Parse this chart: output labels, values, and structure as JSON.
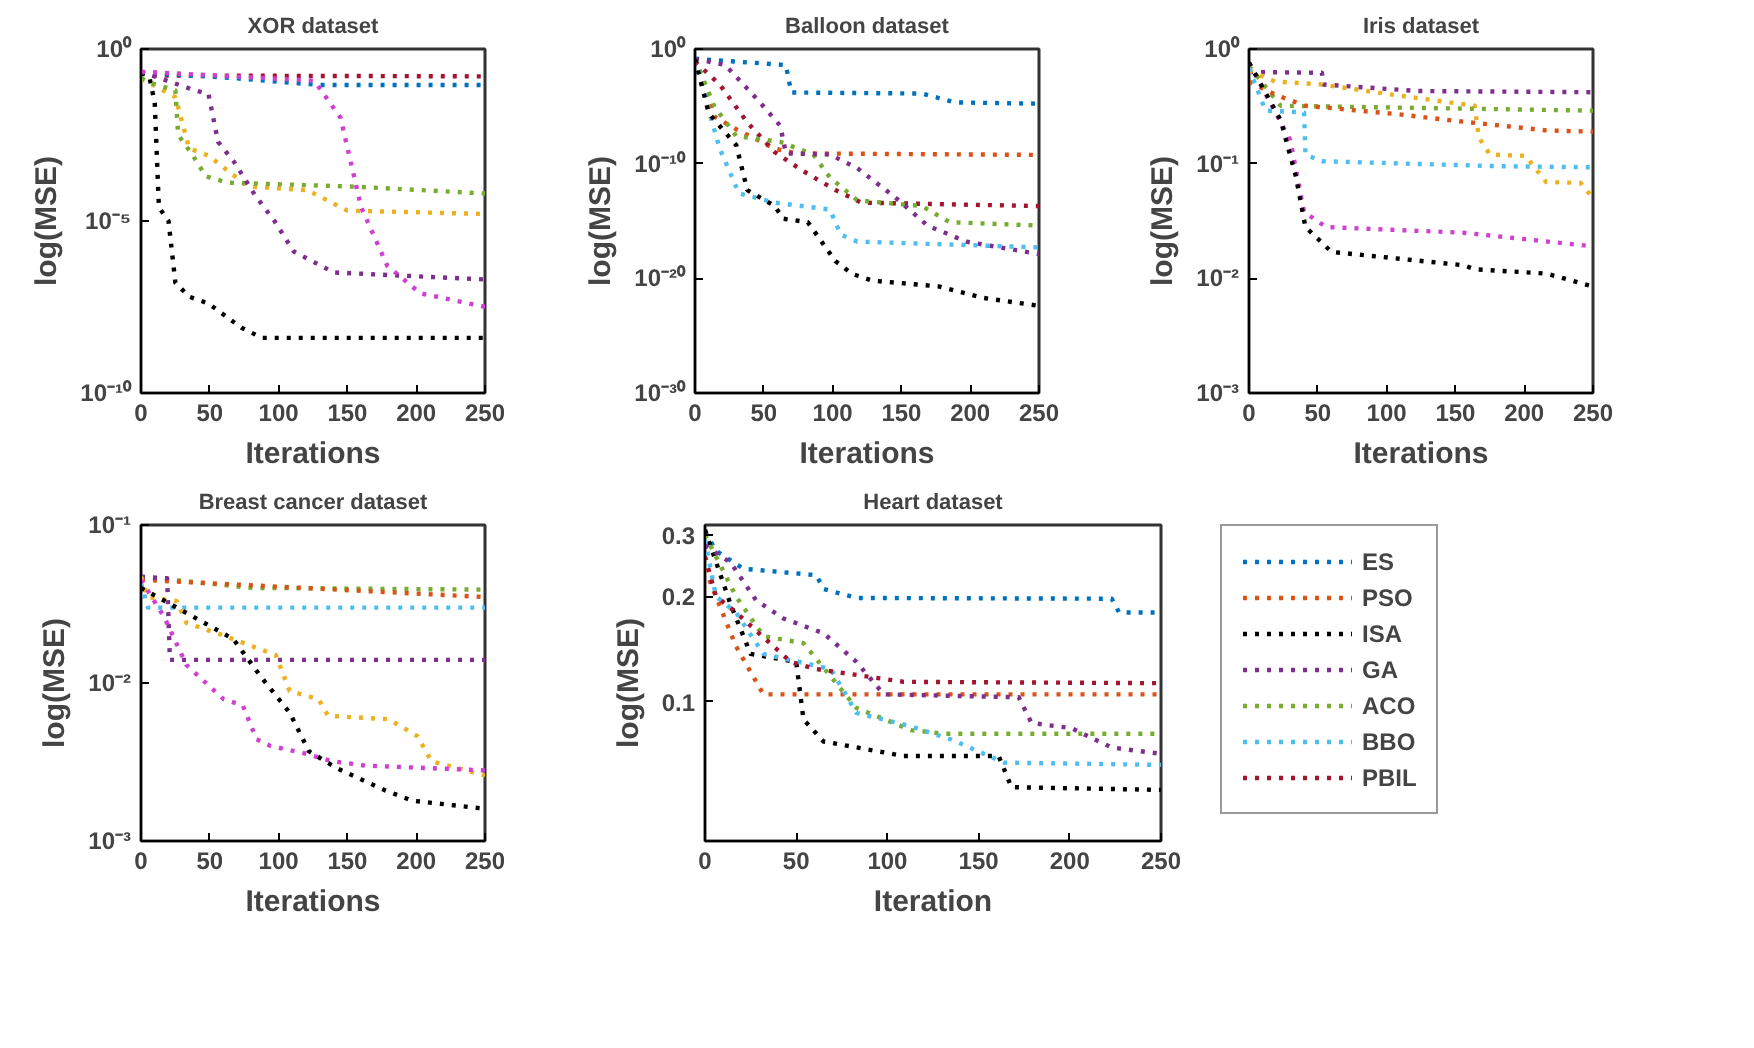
{
  "chart_data": [
    {
      "type": "line",
      "title": "XOR dataset",
      "xlabel": "Iterations",
      "ylabel": "log(MSE)",
      "log": "y",
      "line_style": "dotted",
      "xlim": [
        0,
        250
      ],
      "xticks": [
        0,
        50,
        100,
        150,
        200,
        250
      ],
      "ylim": [
        1e-10,
        1
      ],
      "yticks": [
        {
          "value": 1,
          "label": "10⁰"
        },
        {
          "value": 1e-05,
          "label": "10⁻⁵"
        },
        {
          "value": 1e-10,
          "label": "10⁻¹⁰"
        }
      ],
      "series": [
        {
          "color": "#a2142f",
          "x": [
            0,
            10,
            250
          ],
          "values": [
            0.2,
            0.17,
            0.16
          ]
        },
        {
          "color": "#0072bd",
          "x": [
            0,
            60,
            130,
            250
          ],
          "values": [
            0.2,
            0.15,
            0.09,
            0.09
          ]
        },
        {
          "color": "#000000",
          "x": [
            0,
            6,
            10,
            13,
            20,
            25,
            35,
            49,
            73,
            88,
            250
          ],
          "values": [
            0.2,
            0.16,
            0.027,
            2.5e-05,
            1e-05,
            1.6e-07,
            6.3e-08,
            4e-08,
            7.9e-09,
            4e-09,
            4e-09
          ]
        },
        {
          "color": "#edb120",
          "x": [
            0,
            25,
            35,
            49,
            78,
            121,
            150,
            250
          ],
          "values": [
            0.14,
            0.04,
            0.0013,
            0.00079,
            0.0001,
            7.9e-05,
            2e-05,
            1.6e-05
          ]
        },
        {
          "color": "#77ac30",
          "x": [
            0,
            8,
            25,
            27,
            37,
            47,
            63,
            155,
            250
          ],
          "values": [
            0.14,
            0.1,
            0.063,
            0.0032,
            0.00089,
            0.0002,
            0.00013,
            0.0001,
            6.3e-05
          ]
        },
        {
          "color": "#7e2f8e",
          "x": [
            0,
            39,
            49,
            56,
            68,
            83,
            97,
            111,
            140,
            179,
            250
          ],
          "values": [
            0.22,
            0.063,
            0.05,
            0.002,
            0.0005,
            5.5e-05,
            1e-05,
            1.3e-06,
            3.2e-07,
            2.7e-07,
            2e-07
          ]
        },
        {
          "color": "#d040d0",
          "x": [
            0,
            126,
            145,
            160,
            179,
            203,
            250
          ],
          "values": [
            0.22,
            0.12,
            0.01,
            2.5e-05,
            5e-07,
            7.9e-08,
            3.2e-08
          ]
        }
      ]
    },
    {
      "type": "line",
      "title": "Balloon dataset",
      "xlabel": "Iterations",
      "ylabel": "log(MSE)",
      "log": "y",
      "line_style": "dotted",
      "xlim": [
        0,
        250
      ],
      "xticks": [
        0,
        50,
        100,
        150,
        200,
        250
      ],
      "ylim": [
        1e-30,
        1
      ],
      "yticks": [
        {
          "value": 1,
          "label": "10⁰"
        },
        {
          "value": 1e-10,
          "label": "10⁻¹⁰"
        },
        {
          "value": 1e-20,
          "label": "10⁻²⁰"
        },
        {
          "value": 1e-30,
          "label": "10⁻³⁰"
        }
      ],
      "series": [
        {
          "color": "#0072bd",
          "x": [
            0,
            66,
            70,
            165,
            189,
            250
          ],
          "values": [
            0.14,
            0.04,
            0.00016,
            0.00013,
            2.2e-05,
            1.7e-05
          ]
        },
        {
          "color": "#d95319",
          "x": [
            0,
            14,
            30,
            58,
            74,
            250
          ],
          "values": [
            0.14,
            1.3e-06,
            1e-07,
            2e-09,
            7.9e-10,
            5.8e-10
          ]
        },
        {
          "color": "#a2142f",
          "x": [
            0,
            18,
            38,
            58,
            78,
            102,
            121,
            250
          ],
          "values": [
            0.08,
            0.00079,
            4e-07,
            1e-09,
            2.5e-11,
            5e-13,
            4e-14,
            2e-14
          ]
        },
        {
          "color": "#77ac30",
          "x": [
            0,
            14,
            30,
            62,
            86,
            98,
            118,
            165,
            185,
            250
          ],
          "values": [
            0.14,
            1e-05,
            2.5e-08,
            7.9e-09,
            6.3e-10,
            6.3e-12,
            6.3e-14,
            2e-14,
            7.9e-16,
            4e-16
          ]
        },
        {
          "color": "#7e2f8e",
          "x": [
            0,
            22,
            46,
            62,
            66,
            98,
            118,
            145,
            169,
            197,
            250
          ],
          "values": [
            0.14,
            0.04,
            3.2e-05,
            2e-07,
            7.9e-10,
            6.3e-10,
            4e-11,
            1.3e-13,
            4e-16,
            1.6e-17,
            1.3e-18
          ]
        },
        {
          "color": "#4dbeee",
          "x": [
            0,
            12,
            18,
            32,
            58,
            98,
            106,
            118,
            250
          ],
          "values": [
            0.14,
            6.3e-07,
            2e-09,
            2.5e-13,
            4e-14,
            1e-14,
            6.3e-17,
            1.6e-17,
            5e-18
          ]
        },
        {
          "color": "#000000",
          "x": [
            0,
            10,
            30,
            38,
            58,
            64,
            82,
            102,
            114,
            129,
            177,
            209,
            250
          ],
          "values": [
            0.14,
            2.5e-06,
            4e-09,
            5e-13,
            2e-14,
            1.6e-15,
            7.9e-16,
            3.2e-19,
            2.5e-20,
            6.3e-21,
            2e-21,
            2e-22,
            4e-23
          ]
        }
      ]
    },
    {
      "type": "line",
      "title": "Iris dataset",
      "xlabel": "Iterations",
      "ylabel": "log(MSE)",
      "log": "y",
      "line_style": "dotted",
      "xlim": [
        0,
        250
      ],
      "xticks": [
        0,
        50,
        100,
        150,
        200,
        250
      ],
      "ylim": [
        0.001,
        1
      ],
      "yticks": [
        {
          "value": 1,
          "label": "10⁰"
        },
        {
          "value": 0.1,
          "label": "10⁻¹"
        },
        {
          "value": 0.01,
          "label": "10⁻²"
        },
        {
          "value": 0.001,
          "label": "10⁻³"
        }
      ],
      "series": [
        {
          "color": "#7e2f8e",
          "x": [
            0,
            53,
            54,
            123,
            250
          ],
          "values": [
            0.63,
            0.62,
            0.49,
            0.43,
            0.42
          ]
        },
        {
          "color": "#edb120",
          "x": [
            0,
            19,
            53,
            104,
            164,
            167,
            175,
            201,
            216,
            241,
            250
          ],
          "values": [
            0.65,
            0.52,
            0.49,
            0.4,
            0.32,
            0.17,
            0.12,
            0.117,
            0.069,
            0.068,
            0.05
          ]
        },
        {
          "color": "#77ac30",
          "x": [
            0,
            23,
            250
          ],
          "values": [
            0.71,
            0.32,
            0.29
          ]
        },
        {
          "color": "#d95319",
          "x": [
            0,
            19,
            41,
            108,
            145,
            216,
            250
          ],
          "values": [
            0.52,
            0.4,
            0.32,
            0.27,
            0.24,
            0.195,
            0.19
          ]
        },
        {
          "color": "#4dbeee",
          "x": [
            0,
            12,
            40,
            41,
            53,
            182,
            250
          ],
          "values": [
            0.68,
            0.29,
            0.28,
            0.12,
            0.105,
            0.095,
            0.093
          ]
        },
        {
          "color": "#d040d0",
          "x": [
            0,
            30,
            40,
            56,
            156,
            250
          ],
          "values": [
            0.76,
            0.16,
            0.038,
            0.028,
            0.025,
            0.019
          ]
        },
        {
          "color": "#000000",
          "x": [
            0,
            23,
            34,
            41,
            60,
            82,
            156,
            164,
            216,
            250
          ],
          "values": [
            0.76,
            0.24,
            0.078,
            0.028,
            0.017,
            0.016,
            0.013,
            0.012,
            0.011,
            0.0085
          ]
        }
      ]
    },
    {
      "type": "line",
      "title": "Breast cancer dataset",
      "xlabel": "Iterations",
      "ylabel": "log(MSE)",
      "log": "y",
      "line_style": "dotted",
      "xlim": [
        0,
        250
      ],
      "xticks": [
        0,
        50,
        100,
        150,
        200,
        250
      ],
      "ylim": [
        0.001,
        0.1
      ],
      "yticks": [
        {
          "value": 0.1,
          "label": "10⁻¹"
        },
        {
          "value": 0.01,
          "label": "10⁻²"
        },
        {
          "value": 0.001,
          "label": "10⁻³"
        }
      ],
      "series": [
        {
          "color": "#77ac30",
          "x": [
            0,
            81,
            250
          ],
          "values": [
            0.047,
            0.04,
            0.039
          ]
        },
        {
          "color": "#d95319",
          "x": [
            0,
            250
          ],
          "values": [
            0.045,
            0.035
          ]
        },
        {
          "color": "#4dbeee",
          "x": [
            0,
            5,
            250
          ],
          "values": [
            0.043,
            0.03,
            0.03
          ]
        },
        {
          "color": "#7e2f8e",
          "x": [
            0,
            19,
            21,
            250
          ],
          "values": [
            0.047,
            0.046,
            0.014,
            0.014
          ]
        },
        {
          "color": "#edb120",
          "x": [
            0,
            5,
            26,
            33,
            60,
            98,
            108,
            129,
            136,
            180,
            201,
            211,
            250
          ],
          "values": [
            0.047,
            0.035,
            0.033,
            0.024,
            0.02,
            0.015,
            0.0089,
            0.0079,
            0.0062,
            0.0059,
            0.0046,
            0.0032,
            0.0026
          ]
        },
        {
          "color": "#d040d0",
          "x": [
            0,
            17,
            33,
            60,
            74,
            84,
            94,
            118,
            139,
            163,
            250
          ],
          "values": [
            0.045,
            0.026,
            0.013,
            0.0079,
            0.0072,
            0.0044,
            0.004,
            0.0036,
            0.0032,
            0.003,
            0.0028
          ]
        },
        {
          "color": "#000000",
          "x": [
            0,
            26,
            67,
            87,
            108,
            122,
            142,
            177,
            197,
            250
          ],
          "values": [
            0.04,
            0.03,
            0.019,
            0.011,
            0.0065,
            0.0037,
            0.0029,
            0.0021,
            0.0018,
            0.0016
          ]
        }
      ]
    },
    {
      "type": "line",
      "title": "Heart dataset",
      "xlabel": "Iteration",
      "ylabel": "log(MSE)",
      "log": "y",
      "line_style": "dotted",
      "legend": "right",
      "xlim": [
        0,
        250
      ],
      "xticks": [
        0,
        50,
        100,
        150,
        200,
        250
      ],
      "ylim": [
        0.04,
        0.32
      ],
      "yticks": [
        0.1,
        0.2,
        0.3
      ],
      "series": [
        {
          "name": "ES",
          "color": "#0072bd",
          "x": [
            0,
            6,
            21,
            61,
            65,
            83,
            223,
            227,
            250
          ],
          "values": [
            0.306,
            0.27,
            0.24,
            0.23,
            0.21,
            0.198,
            0.197,
            0.18,
            0.18
          ]
        },
        {
          "name": "PSO",
          "color": "#d95319",
          "x": [
            0,
            6,
            17,
            32,
            250
          ],
          "values": [
            0.24,
            0.2,
            0.144,
            0.105,
            0.105
          ]
        },
        {
          "name": "ISA",
          "color": "#000000",
          "x": [
            0,
            14,
            25,
            50,
            54,
            65,
            109,
            161,
            168,
            250
          ],
          "values": [
            0.31,
            0.19,
            0.137,
            0.13,
            0.089,
            0.077,
            0.07,
            0.07,
            0.057,
            0.056
          ]
        },
        {
          "name": "GA",
          "color": "#7e2f8e",
          "x": [
            0,
            14,
            28,
            43,
            65,
            83,
            98,
            172,
            179,
            201,
            223,
            250
          ],
          "values": [
            0.28,
            0.25,
            0.195,
            0.173,
            0.157,
            0.13,
            0.105,
            0.103,
            0.087,
            0.084,
            0.074,
            0.071
          ]
        },
        {
          "name": "ACO",
          "color": "#77ac30",
          "x": [
            0,
            17,
            32,
            54,
            83,
            113,
            131,
            250
          ],
          "values": [
            0.3,
            0.2,
            0.154,
            0.147,
            0.096,
            0.083,
            0.081,
            0.081
          ]
        },
        {
          "name": "BBO",
          "color": "#4dbeee",
          "x": [
            0,
            6,
            17,
            32,
            69,
            83,
            113,
            135,
            164,
            250
          ],
          "values": [
            0.29,
            0.2,
            0.18,
            0.137,
            0.124,
            0.093,
            0.085,
            0.078,
            0.067,
            0.066
          ]
        },
        {
          "name": "PBIL",
          "color": "#a2142f",
          "x": [
            0,
            6,
            17,
            47,
            61,
            109,
            250
          ],
          "values": [
            0.26,
            0.2,
            0.18,
            0.13,
            0.124,
            0.114,
            0.113
          ]
        }
      ]
    }
  ]
}
